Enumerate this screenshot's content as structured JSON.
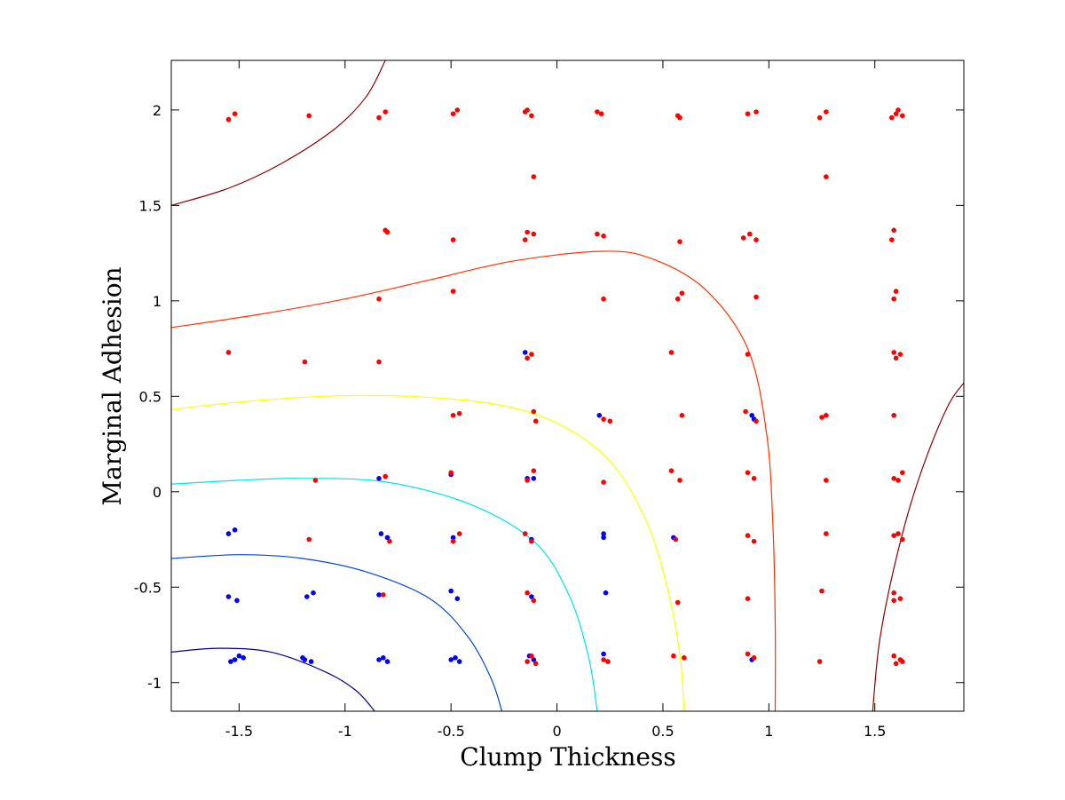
{
  "chart_data": {
    "type": "scatter",
    "title": "",
    "xlabel": "Clump Thickness",
    "ylabel": "Marginal Adhesion",
    "xlim": [
      -1.82,
      1.92
    ],
    "ylim": [
      -1.15,
      2.26
    ],
    "xticks": [
      -1.5,
      -1,
      -0.5,
      0,
      0.5,
      1,
      1.5
    ],
    "xtick_labels": [
      "-1.5",
      "-1",
      "-0.5",
      "0",
      "0.5",
      "1",
      "1.5"
    ],
    "yticks": [
      -1,
      -0.5,
      0,
      0.5,
      1,
      1.5,
      2
    ],
    "ytick_labels": [
      "-1",
      "-0.5",
      "0",
      "0.5",
      "1",
      "1.5",
      "2"
    ],
    "grid": false,
    "contour_colors": [
      "#00008b",
      "#0047d6",
      "#00e5e5",
      "#ffff00",
      "#ff3300",
      "#8b0000"
    ],
    "series": [
      {
        "color": "#0000ff",
        "points": [
          [
            -1.52,
            -0.88
          ],
          [
            -1.5,
            -0.86
          ],
          [
            -1.54,
            -0.89
          ],
          [
            -1.48,
            -0.87
          ],
          [
            -1.19,
            -0.88
          ],
          [
            -1.16,
            -0.89
          ],
          [
            -1.2,
            -0.87
          ],
          [
            -0.84,
            -0.88
          ],
          [
            -0.82,
            -0.87
          ],
          [
            -0.8,
            -0.89
          ],
          [
            -0.5,
            -0.88
          ],
          [
            -0.48,
            -0.87
          ],
          [
            -0.46,
            -0.89
          ],
          [
            -0.13,
            -0.86
          ],
          [
            -0.11,
            -0.88
          ],
          [
            0.22,
            -0.85
          ],
          [
            0.92,
            -0.88
          ],
          [
            -1.55,
            -0.55
          ],
          [
            -1.51,
            -0.57
          ],
          [
            -1.18,
            -0.55
          ],
          [
            -1.15,
            -0.53
          ],
          [
            -0.84,
            -0.54
          ],
          [
            -0.5,
            -0.52
          ],
          [
            -0.47,
            -0.56
          ],
          [
            -0.12,
            -0.55
          ],
          [
            0.23,
            -0.53
          ],
          [
            -1.55,
            -0.22
          ],
          [
            -1.52,
            -0.2
          ],
          [
            -0.83,
            -0.22
          ],
          [
            -0.8,
            -0.24
          ],
          [
            -0.49,
            -0.24
          ],
          [
            -0.12,
            -0.25
          ],
          [
            0.22,
            -0.24
          ],
          [
            0.22,
            -0.22
          ],
          [
            0.55,
            -0.24
          ],
          [
            -0.84,
            0.07
          ],
          [
            -0.14,
            0.07
          ],
          [
            -0.5,
            0.09
          ],
          [
            -0.11,
            0.07
          ],
          [
            -0.15,
            0.73
          ],
          [
            0.2,
            0.4
          ],
          [
            0.92,
            0.4
          ],
          [
            0.93,
            0.38
          ]
        ]
      },
      {
        "color": "#ff0000",
        "points": [
          [
            -1.55,
            1.95
          ],
          [
            -1.52,
            1.98
          ],
          [
            -1.17,
            1.97
          ],
          [
            -0.84,
            1.96
          ],
          [
            -0.81,
            1.99
          ],
          [
            -0.49,
            1.98
          ],
          [
            -0.47,
            2.0
          ],
          [
            -0.15,
            1.99
          ],
          [
            -0.12,
            1.97
          ],
          [
            -0.14,
            2.0
          ],
          [
            0.19,
            1.99
          ],
          [
            0.21,
            1.98
          ],
          [
            0.57,
            1.97
          ],
          [
            0.58,
            1.96
          ],
          [
            0.9,
            1.98
          ],
          [
            0.94,
            1.99
          ],
          [
            1.24,
            1.96
          ],
          [
            1.27,
            1.99
          ],
          [
            1.6,
            1.98
          ],
          [
            1.63,
            1.97
          ],
          [
            1.61,
            2.0
          ],
          [
            1.58,
            1.96
          ],
          [
            -0.11,
            1.65
          ],
          [
            1.27,
            1.65
          ],
          [
            -0.81,
            1.37
          ],
          [
            -0.8,
            1.36
          ],
          [
            -0.49,
            1.32
          ],
          [
            -0.14,
            1.36
          ],
          [
            -0.11,
            1.35
          ],
          [
            -0.15,
            1.32
          ],
          [
            0.19,
            1.35
          ],
          [
            0.22,
            1.34
          ],
          [
            0.58,
            1.31
          ],
          [
            0.88,
            1.33
          ],
          [
            0.91,
            1.35
          ],
          [
            0.94,
            1.32
          ],
          [
            1.59,
            1.37
          ],
          [
            1.58,
            1.32
          ],
          [
            -0.84,
            1.01
          ],
          [
            -0.49,
            1.05
          ],
          [
            0.22,
            1.01
          ],
          [
            0.57,
            1.01
          ],
          [
            0.59,
            1.04
          ],
          [
            0.94,
            1.02
          ],
          [
            1.6,
            1.05
          ],
          [
            1.59,
            1.01
          ],
          [
            -1.55,
            0.73
          ],
          [
            -1.19,
            0.68
          ],
          [
            -0.84,
            0.68
          ],
          [
            -0.14,
            0.7
          ],
          [
            -0.12,
            0.72
          ],
          [
            0.54,
            0.73
          ],
          [
            0.9,
            0.72
          ],
          [
            1.59,
            0.73
          ],
          [
            1.62,
            0.72
          ],
          [
            1.6,
            0.7
          ],
          [
            -0.49,
            0.4
          ],
          [
            -0.46,
            0.41
          ],
          [
            -0.11,
            0.42
          ],
          [
            -0.1,
            0.37
          ],
          [
            0.22,
            0.38
          ],
          [
            0.25,
            0.37
          ],
          [
            0.59,
            0.4
          ],
          [
            0.89,
            0.42
          ],
          [
            0.94,
            0.37
          ],
          [
            1.25,
            0.39
          ],
          [
            1.27,
            0.4
          ],
          [
            1.59,
            0.4
          ],
          [
            -1.14,
            0.06
          ],
          [
            -0.81,
            0.08
          ],
          [
            -0.5,
            0.1
          ],
          [
            -0.14,
            0.06
          ],
          [
            -0.11,
            0.11
          ],
          [
            0.22,
            0.05
          ],
          [
            0.54,
            0.11
          ],
          [
            0.58,
            0.06
          ],
          [
            0.9,
            0.1
          ],
          [
            0.93,
            0.07
          ],
          [
            1.27,
            0.06
          ],
          [
            1.59,
            0.07
          ],
          [
            1.63,
            0.1
          ],
          [
            1.61,
            0.06
          ],
          [
            -1.17,
            -0.25
          ],
          [
            -0.79,
            -0.26
          ],
          [
            -0.46,
            -0.22
          ],
          [
            -0.49,
            -0.26
          ],
          [
            -0.15,
            -0.22
          ],
          [
            -0.12,
            -0.26
          ],
          [
            0.56,
            -0.25
          ],
          [
            0.9,
            -0.23
          ],
          [
            0.93,
            -0.26
          ],
          [
            1.27,
            -0.22
          ],
          [
            1.59,
            -0.23
          ],
          [
            1.63,
            -0.25
          ],
          [
            1.61,
            -0.22
          ],
          [
            -0.82,
            -0.54
          ],
          [
            -0.14,
            -0.53
          ],
          [
            -0.11,
            -0.57
          ],
          [
            0.57,
            -0.58
          ],
          [
            0.9,
            -0.56
          ],
          [
            1.25,
            -0.52
          ],
          [
            1.59,
            -0.53
          ],
          [
            1.62,
            -0.56
          ],
          [
            1.59,
            -0.57
          ],
          [
            -0.14,
            -0.89
          ],
          [
            -0.12,
            -0.86
          ],
          [
            -0.1,
            -0.9
          ],
          [
            0.22,
            -0.88
          ],
          [
            0.24,
            -0.89
          ],
          [
            0.55,
            -0.86
          ],
          [
            0.6,
            -0.87
          ],
          [
            0.9,
            -0.85
          ],
          [
            0.93,
            -0.87
          ],
          [
            1.24,
            -0.89
          ],
          [
            1.59,
            -0.86
          ],
          [
            1.62,
            -0.88
          ],
          [
            1.63,
            -0.89
          ],
          [
            1.6,
            -0.9
          ]
        ]
      }
    ],
    "contours": [
      {
        "color": "#00008b",
        "points": [
          [
            -1.82,
            -0.84
          ],
          [
            -1.6,
            -0.82
          ],
          [
            -1.35,
            -0.84
          ],
          [
            -1.1,
            -0.94
          ],
          [
            -0.95,
            -1.04
          ],
          [
            -0.86,
            -1.15
          ]
        ]
      },
      {
        "color": "#0047d6",
        "points": [
          [
            -1.82,
            -0.35
          ],
          [
            -1.5,
            -0.33
          ],
          [
            -1.2,
            -0.35
          ],
          [
            -0.9,
            -0.42
          ],
          [
            -0.6,
            -0.56
          ],
          [
            -0.42,
            -0.76
          ],
          [
            -0.31,
            -0.98
          ],
          [
            -0.26,
            -1.15
          ]
        ]
      },
      {
        "color": "#00e5e5",
        "points": [
          [
            -1.82,
            0.04
          ],
          [
            -1.5,
            0.06
          ],
          [
            -1.2,
            0.07
          ],
          [
            -0.8,
            0.05
          ],
          [
            -0.4,
            -0.07
          ],
          [
            -0.1,
            -0.27
          ],
          [
            0.06,
            -0.55
          ],
          [
            0.15,
            -0.87
          ],
          [
            0.19,
            -1.15
          ]
        ]
      },
      {
        "color": "#ffff00",
        "points": [
          [
            -1.82,
            0.43
          ],
          [
            -1.5,
            0.47
          ],
          [
            -1.1,
            0.5
          ],
          [
            -0.7,
            0.5
          ],
          [
            -0.3,
            0.46
          ],
          [
            0.0,
            0.36
          ],
          [
            0.25,
            0.16
          ],
          [
            0.42,
            -0.15
          ],
          [
            0.52,
            -0.5
          ],
          [
            0.58,
            -0.85
          ],
          [
            0.6,
            -1.15
          ]
        ]
      },
      {
        "color": "#ff3300",
        "points": [
          [
            -1.82,
            0.86
          ],
          [
            -1.4,
            0.93
          ],
          [
            -1.0,
            1.01
          ],
          [
            -0.6,
            1.11
          ],
          [
            -0.2,
            1.21
          ],
          [
            0.22,
            1.26
          ],
          [
            0.45,
            1.22
          ],
          [
            0.7,
            1.06
          ],
          [
            0.9,
            0.75
          ],
          [
            0.99,
            0.3
          ],
          [
            1.02,
            -0.2
          ],
          [
            1.03,
            -0.7
          ],
          [
            1.03,
            -1.15
          ]
        ]
      },
      {
        "color": "#8b0000",
        "points": [
          [
            -1.82,
            1.5
          ],
          [
            -1.55,
            1.59
          ],
          [
            -1.3,
            1.72
          ],
          [
            -1.05,
            1.9
          ],
          [
            -0.9,
            2.07
          ],
          [
            -0.81,
            2.26
          ]
        ]
      },
      {
        "color": "#8b0000",
        "points": [
          [
            1.49,
            -1.15
          ],
          [
            1.52,
            -0.8
          ],
          [
            1.58,
            -0.45
          ],
          [
            1.66,
            -0.1
          ],
          [
            1.75,
            0.2
          ],
          [
            1.85,
            0.46
          ],
          [
            1.92,
            0.57
          ]
        ]
      }
    ]
  }
}
